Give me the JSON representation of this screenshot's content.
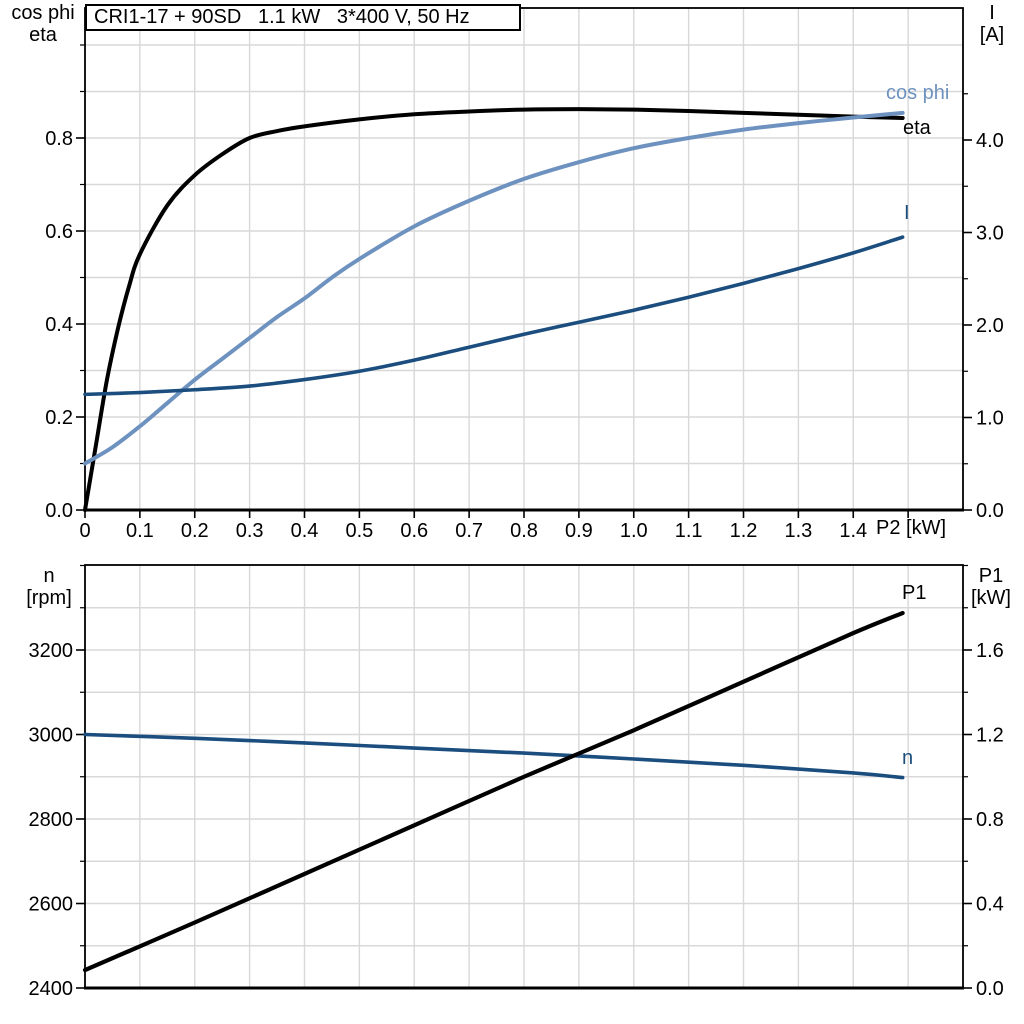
{
  "colors": {
    "black": "#000000",
    "light_blue": "#6e92bf",
    "dark_blue": "#1b4e7e",
    "grid": "#d8d8d8",
    "background": "#ffffff"
  },
  "chart_data": [
    {
      "type": "line",
      "title": "CRI1-17 + 90SD   1.1 kW   3*400 V, 50 Hz",
      "x_axis": {
        "label": "P2 [kW]",
        "lim": [
          0,
          1.6
        ],
        "tick_step": 0.1,
        "tick_labels": [
          "0",
          "0.1",
          "0.2",
          "0.3",
          "0.4",
          "0.5",
          "0.6",
          "0.7",
          "0.8",
          "0.9",
          "1.0",
          "1.1",
          "1.2",
          "1.3",
          "1.4"
        ]
      },
      "left_axis": {
        "name_line1": "cos phi",
        "name_line2": "eta",
        "lim": [
          0,
          1.08
        ],
        "major_step": 0.2,
        "minor_step": 0.1,
        "tick_labels": [
          "0.0",
          "0.2",
          "0.4",
          "0.6",
          "0.8"
        ]
      },
      "right_axis": {
        "name_line1": "I",
        "name_line2": "[A]",
        "lim": [
          0,
          4.86
        ],
        "major_step": 1.0,
        "minor_step": 0.5,
        "tick_labels": [
          "0.0",
          "1.0",
          "2.0",
          "3.0",
          "4.0"
        ]
      },
      "grid": true,
      "legend_position": "curve-end-labels",
      "series": [
        {
          "name": "eta",
          "axis": "left",
          "color_key": "black",
          "x": [
            0,
            0.02,
            0.04,
            0.06,
            0.08,
            0.1,
            0.15,
            0.2,
            0.25,
            0.3,
            0.35,
            0.4,
            0.5,
            0.6,
            0.7,
            0.8,
            0.9,
            1.0,
            1.1,
            1.2,
            1.3,
            1.4,
            1.49
          ],
          "y": [
            0,
            0.14,
            0.28,
            0.39,
            0.48,
            0.55,
            0.655,
            0.72,
            0.765,
            0.8,
            0.815,
            0.825,
            0.84,
            0.851,
            0.857,
            0.861,
            0.862,
            0.861,
            0.858,
            0.854,
            0.85,
            0.846,
            0.843
          ]
        },
        {
          "name": "cos phi",
          "axis": "left",
          "color_key": "light_blue",
          "x": [
            0,
            0.05,
            0.1,
            0.15,
            0.2,
            0.25,
            0.3,
            0.35,
            0.4,
            0.45,
            0.5,
            0.6,
            0.7,
            0.8,
            0.9,
            1.0,
            1.1,
            1.2,
            1.3,
            1.4,
            1.49
          ],
          "y": [
            0.1,
            0.135,
            0.18,
            0.23,
            0.28,
            0.325,
            0.37,
            0.415,
            0.455,
            0.5,
            0.54,
            0.61,
            0.665,
            0.712,
            0.748,
            0.778,
            0.8,
            0.818,
            0.832,
            0.844,
            0.854
          ]
        },
        {
          "name": "I",
          "axis": "right",
          "color_key": "dark_blue",
          "x": [
            0,
            0.1,
            0.2,
            0.3,
            0.4,
            0.5,
            0.6,
            0.7,
            0.8,
            0.9,
            1.0,
            1.1,
            1.2,
            1.3,
            1.4,
            1.49
          ],
          "y": [
            1.25,
            1.27,
            1.3,
            1.34,
            1.41,
            1.5,
            1.62,
            1.76,
            1.9,
            2.03,
            2.16,
            2.3,
            2.45,
            2.61,
            2.78,
            2.95
          ]
        }
      ]
    },
    {
      "type": "line",
      "title": "",
      "x_axis": {
        "label": "",
        "lim": [
          0,
          1.6
        ],
        "tick_step": 0.1,
        "tick_labels": []
      },
      "left_axis": {
        "name_line1": "n",
        "name_line2": "[rpm]",
        "lim": [
          2400,
          3400
        ],
        "major_step": 200,
        "minor_step": 100,
        "tick_labels": [
          "2400",
          "2600",
          "2800",
          "3000",
          "3200"
        ]
      },
      "right_axis": {
        "name_line1": "P1",
        "name_line2": "[kW]",
        "lim": [
          0,
          2.0
        ],
        "major_step": 0.4,
        "minor_step": 0.2,
        "tick_labels": [
          "0.0",
          "0.4",
          "0.8",
          "1.2",
          "1.6"
        ]
      },
      "grid": true,
      "legend_position": "curve-end-labels",
      "series": [
        {
          "name": "n",
          "axis": "left",
          "color_key": "dark_blue",
          "x": [
            0,
            0.2,
            0.4,
            0.6,
            0.8,
            1.0,
            1.2,
            1.4,
            1.49
          ],
          "y": [
            3000,
            2991,
            2980,
            2968,
            2956,
            2942,
            2927,
            2909,
            2898
          ]
        },
        {
          "name": "P1",
          "axis": "right",
          "color_key": "black",
          "x": [
            0,
            0.2,
            0.4,
            0.6,
            0.8,
            1.0,
            1.2,
            1.4,
            1.49
          ],
          "y": [
            0.085,
            0.31,
            0.54,
            0.77,
            1.0,
            1.22,
            1.45,
            1.68,
            1.775
          ]
        }
      ]
    }
  ]
}
